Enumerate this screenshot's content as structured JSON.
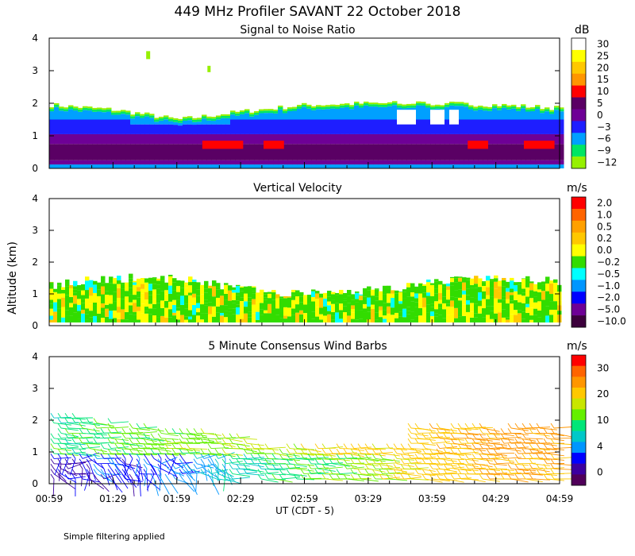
{
  "figure": {
    "title": "449 MHz Profiler SAVANT 22 October 2018",
    "ylabel": "Altitude (km)",
    "xlabel": "UT  (CDT - 5)",
    "footnote": "Simple filtering applied",
    "xticks": [
      "00:59",
      "01:29",
      "01:59",
      "02:29",
      "02:59",
      "03:29",
      "03:59",
      "04:29",
      "04:59"
    ]
  },
  "chart_data": [
    {
      "type": "heatmap",
      "title": "Signal to Noise Ratio",
      "unit": "dB",
      "ylim": [
        0,
        4
      ],
      "yticks": [
        "0",
        "1",
        "2",
        "3",
        "4"
      ],
      "colorbar": {
        "labels": [
          "30",
          "25",
          "20",
          "15",
          "10",
          "5",
          "0",
          "−3",
          "−6",
          "−9",
          "−12"
        ],
        "colors": [
          "#ffffff",
          "#ffff00",
          "#ffc800",
          "#ff9600",
          "#ff0000",
          "#5a0064",
          "#6e0096",
          "#1e1eff",
          "#00a0ff",
          "#00e664",
          "#96f000"
        ]
      },
      "profile_heights_km": {
        "x": [
          "00:59",
          "01:29",
          "01:59",
          "02:29",
          "02:59",
          "03:29",
          "03:59",
          "04:29",
          "04:59"
        ],
        "top": [
          1.95,
          1.8,
          1.5,
          1.75,
          1.95,
          2.0,
          2.0,
          1.95,
          1.85
        ]
      }
    },
    {
      "type": "heatmap",
      "title": "Vertical Velocity",
      "unit": "m/s",
      "ylim": [
        0,
        4
      ],
      "yticks": [
        "0",
        "1",
        "2",
        "3",
        "4"
      ],
      "colorbar": {
        "labels": [
          "2.0",
          "1.0",
          "0.5",
          "0.2",
          "0.0",
          "−0.2",
          "−0.5",
          "−1.0",
          "−2.0",
          "−5.0",
          "−10.0"
        ],
        "colors": [
          "#ff0000",
          "#ff6400",
          "#ffa000",
          "#ffc800",
          "#ffff00",
          "#32dc00",
          "#00ffff",
          "#0096ff",
          "#0000ff",
          "#6e0096",
          "#3c003c"
        ]
      }
    },
    {
      "type": "scatter",
      "title": "5 Minute Consensus Wind Barbs",
      "unit": "m/s",
      "ylim": [
        0,
        4
      ],
      "yticks": [
        "0",
        "1",
        "2",
        "3",
        "4"
      ],
      "colorbar": {
        "labels": [
          "30",
          "20",
          "10",
          "4",
          "0"
        ],
        "colors": [
          "#ff0000",
          "#ff6400",
          "#ff9600",
          "#ffc800",
          "#c8e600",
          "#64f000",
          "#00e678",
          "#00c8c8",
          "#0096ff",
          "#0000ff",
          "#3c00a0",
          "#50005a"
        ]
      },
      "wind_speed_ms": {
        "x": [
          "00:59",
          "01:29",
          "01:59",
          "02:29",
          "02:59",
          "03:29",
          "03:59",
          "04:29",
          "04:59"
        ],
        "low_levels": [
          2,
          3,
          4,
          8,
          10,
          12,
          16,
          18,
          18
        ],
        "upper_levels": [
          9,
          10,
          11,
          12,
          13,
          15,
          17,
          19,
          19
        ]
      }
    }
  ]
}
